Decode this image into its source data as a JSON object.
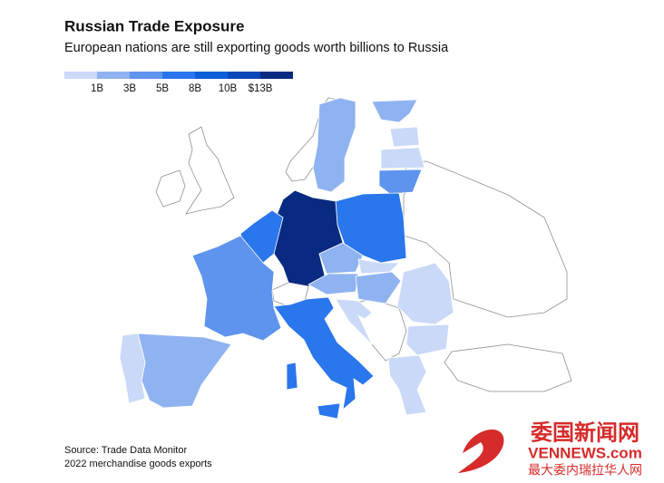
{
  "header": {
    "title": "Russian Trade Exposure",
    "subtitle": "European nations are still exporting goods worth billions to Russia"
  },
  "legend": {
    "colors": [
      "#c9d9f7",
      "#8fb2f0",
      "#5e93ee",
      "#2a76ec",
      "#0d5ed8",
      "#0747b8",
      "#082a80"
    ],
    "labels": [
      "1B",
      "3B",
      "5B",
      "8B",
      "10B",
      "$13B"
    ]
  },
  "footer": {
    "source": "Source: Trade Data Monitor",
    "note": "2022 merchandise goods exports"
  },
  "watermark": {
    "name": "委国新闻网",
    "site": "VENNEWS.com",
    "slogan": "最大委内瑞拉华人网"
  }
}
